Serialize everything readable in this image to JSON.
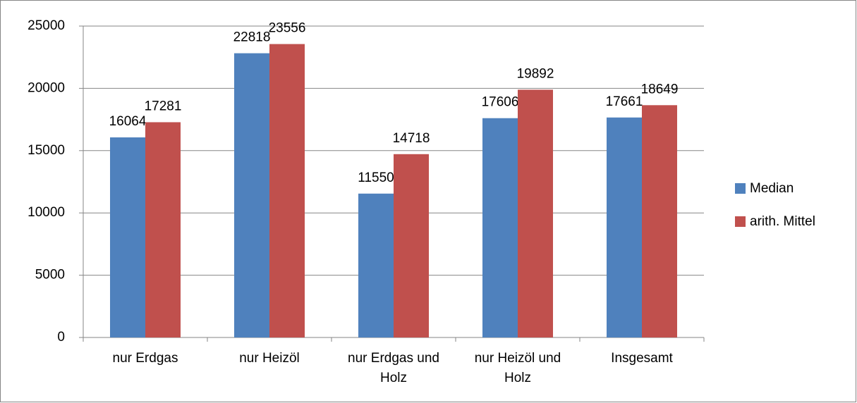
{
  "chart_data": {
    "type": "bar",
    "categories": [
      "nur Erdgas",
      "nur Heizöl",
      "nur Erdgas und Holz",
      "nur Heizöl und Holz",
      "Insgesamt"
    ],
    "series": [
      {
        "name": "Median",
        "color": "#4f81bd",
        "values": [
          16064,
          22818,
          11550,
          17606,
          17661
        ]
      },
      {
        "name": "arith. Mittel",
        "color": "#c0504d",
        "values": [
          17281,
          23556,
          14718,
          19892,
          18649
        ]
      }
    ],
    "ylim": [
      0,
      25000
    ],
    "yticks": [
      0,
      5000,
      10000,
      15000,
      20000,
      25000
    ],
    "grid": true,
    "legend": "right"
  }
}
